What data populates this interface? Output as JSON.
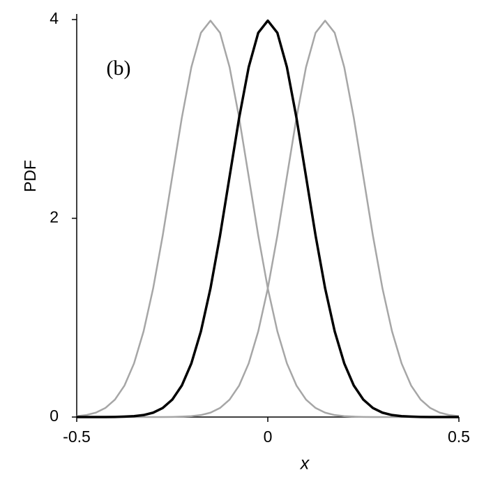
{
  "chart_data": {
    "type": "line",
    "annotation": "(b)",
    "x_label": "x",
    "y_label": "PDF",
    "x": [
      -0.5,
      -0.475,
      -0.45,
      -0.425,
      -0.4,
      -0.375,
      -0.35,
      -0.325,
      -0.3,
      -0.275,
      -0.25,
      -0.225,
      -0.2,
      -0.175,
      -0.15,
      -0.125,
      -0.1,
      -0.075,
      -0.05,
      -0.025,
      0,
      0.025,
      0.05,
      0.075,
      0.1,
      0.125,
      0.15,
      0.175,
      0.2,
      0.225,
      0.25,
      0.275,
      0.3,
      0.325,
      0.35,
      0.375,
      0.4,
      0.425,
      0.45,
      0.475,
      0.5
    ],
    "series": [
      {
        "color": "#a6a6a6",
        "width": 2.5,
        "values": [
          0.009,
          0.02,
          0.044,
          0.091,
          0.175,
          0.317,
          0.54,
          0.863,
          1.295,
          1.826,
          2.42,
          3.011,
          3.521,
          3.867,
          3.989,
          3.867,
          3.521,
          3.011,
          2.42,
          1.826,
          1.295,
          0.863,
          0.54,
          0.317,
          0.175,
          0.091,
          0.044,
          0.02,
          0.009,
          0.004,
          0.001,
          0,
          0,
          0,
          0,
          0,
          0,
          0,
          0,
          0,
          0
        ]
      },
      {
        "color": "#a6a6a6",
        "width": 2.5,
        "values": [
          0,
          0,
          0,
          0,
          0,
          0,
          0,
          0,
          0,
          0,
          0.001,
          0.004,
          0.009,
          0.02,
          0.044,
          0.091,
          0.175,
          0.317,
          0.54,
          0.863,
          1.295,
          1.826,
          2.42,
          3.011,
          3.521,
          3.867,
          3.989,
          3.867,
          3.521,
          3.011,
          2.42,
          1.826,
          1.295,
          0.863,
          0.54,
          0.317,
          0.175,
          0.091,
          0.044,
          0.02,
          0.009
        ]
      },
      {
        "color": "#000000",
        "width": 3.5,
        "values": [
          0,
          0,
          0,
          0,
          0.001,
          0.004,
          0.009,
          0.02,
          0.044,
          0.091,
          0.175,
          0.317,
          0.54,
          0.863,
          1.295,
          1.826,
          2.42,
          3.011,
          3.521,
          3.867,
          3.989,
          3.867,
          3.521,
          3.011,
          2.42,
          1.826,
          1.295,
          0.863,
          0.54,
          0.317,
          0.175,
          0.091,
          0.044,
          0.02,
          0.009,
          0.004,
          0.001,
          0,
          0,
          0,
          0
        ]
      }
    ],
    "xlim": [
      -0.5,
      0.5
    ],
    "xticks": [
      -0.5,
      0,
      0.5
    ],
    "ylim": [
      0,
      4
    ],
    "yticks": [
      0,
      2,
      4
    ],
    "grid": false
  }
}
